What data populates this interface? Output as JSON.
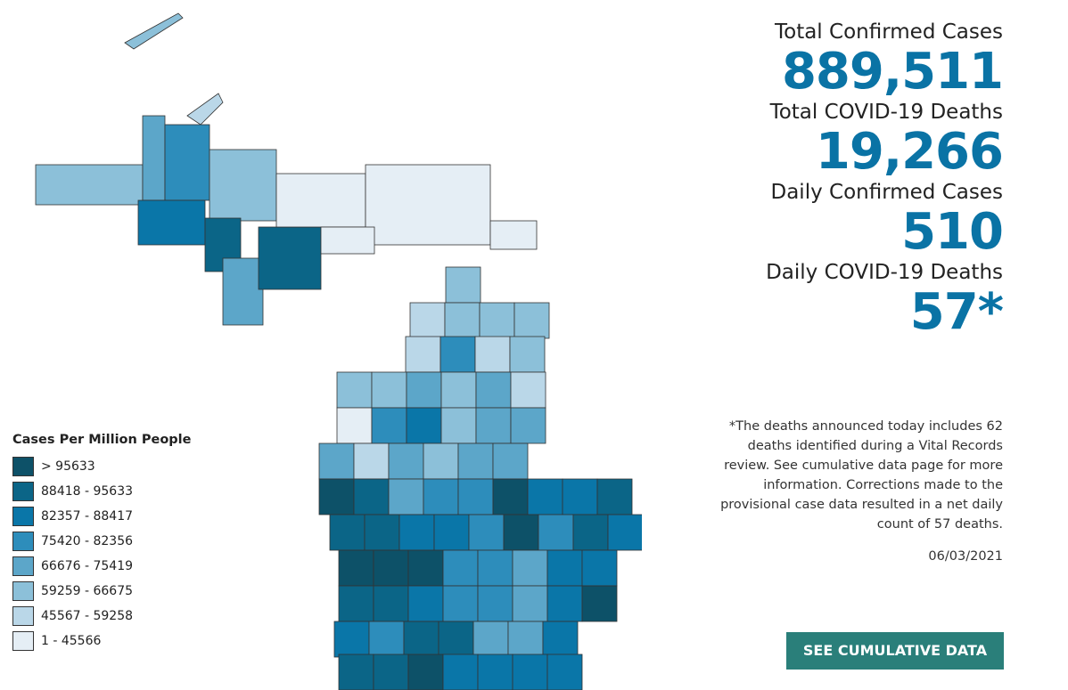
{
  "stats": [
    {
      "label": "Total Confirmed Cases",
      "value": "889,511"
    },
    {
      "label": "Total COVID-19 Deaths",
      "value": "19,266"
    },
    {
      "label": "Daily Confirmed Cases",
      "value": "510"
    },
    {
      "label": "Daily COVID-19 Deaths",
      "value": "57*"
    }
  ],
  "note": "*The deaths announced today includes 62 deaths identified during a Vital Records review. See cumulative data page for more information. Corrections made to the provisional case data resulted in a net daily count of 57 deaths.",
  "date": "06/03/2021",
  "button": "SEE CUMULATIVE DATA",
  "legend": {
    "title": "Cases Per Million People",
    "items": [
      {
        "label": "> 95633",
        "color": "#0d5168"
      },
      {
        "label": "88418 - 95633",
        "color": "#0b6587"
      },
      {
        "label": "82357 - 88417",
        "color": "#0a76a8"
      },
      {
        "label": "75420 - 82356",
        "color": "#2d8dbb"
      },
      {
        "label": "66676 - 75419",
        "color": "#5ca6c9"
      },
      {
        "label": "59259 - 66675",
        "color": "#8cc0d9"
      },
      {
        "label": "45567 - 59258",
        "color": "#bad7e8"
      },
      {
        "label": "1 - 45566",
        "color": "#e5eef5"
      }
    ]
  }
}
